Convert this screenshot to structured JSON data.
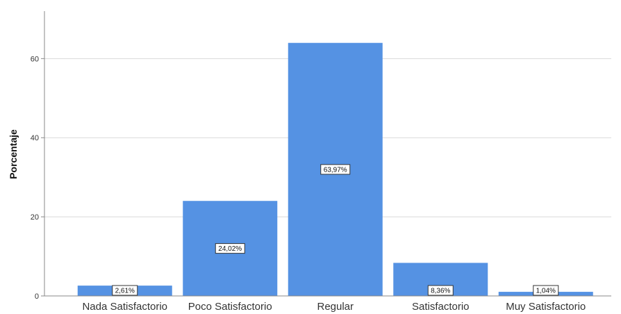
{
  "chart_data": {
    "type": "bar",
    "title": "",
    "xlabel": "",
    "ylabel": "Porcentaje",
    "ylim": [
      0,
      72
    ],
    "yticks": [
      0,
      20,
      40,
      60
    ],
    "grid": true,
    "bar_color": "#5592e3",
    "categories": [
      "Nada Satisfactorio",
      "Poco Satisfactorio",
      "Regular",
      "Satisfactorio",
      "Muy Satisfactorio"
    ],
    "values": [
      2.61,
      24.02,
      63.97,
      8.36,
      1.04
    ],
    "data_labels": [
      "2,61%",
      "24,02%",
      "63,97%",
      "8,36%",
      "1,04%"
    ]
  }
}
